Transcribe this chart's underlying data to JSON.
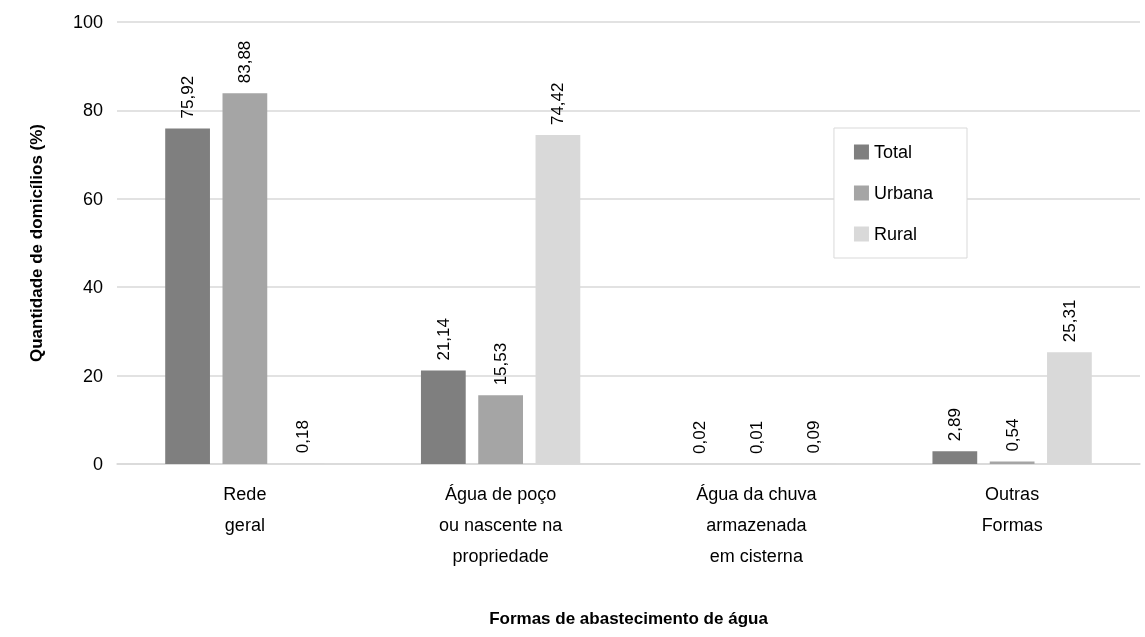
{
  "chart_data": {
    "type": "bar",
    "xlabel": "Formas de abastecimento de água",
    "ylabel": "Quantidade de domicílios (%)",
    "categories": [
      "Rede\ngeral",
      "Água de poço\nou nascente na\npropriedade",
      "Água da chuva\narmazenada\nem cisterna",
      "Outras\nFormas"
    ],
    "series": [
      {
        "name": "Total",
        "color": "#7f7f7f",
        "values": [
          75.92,
          21.14,
          0.02,
          2.89
        ],
        "value_labels": [
          "75,92",
          "21,14",
          "0,02",
          "2,89"
        ]
      },
      {
        "name": "Urbana",
        "color": "#a5a5a5",
        "values": [
          83.88,
          15.53,
          0.01,
          0.54
        ],
        "value_labels": [
          "83,88",
          "15,53",
          "0,01",
          "0,54"
        ]
      },
      {
        "name": "Rural",
        "color": "#d9d9d9",
        "values": [
          0.18,
          74.42,
          0.09,
          25.31
        ],
        "value_labels": [
          "0,18",
          "74,42",
          "0,09",
          "25,31"
        ]
      }
    ],
    "ylim": [
      0,
      100
    ],
    "yticks": [
      0,
      20,
      40,
      60,
      80,
      100
    ],
    "grid": "y",
    "legend": "right"
  }
}
